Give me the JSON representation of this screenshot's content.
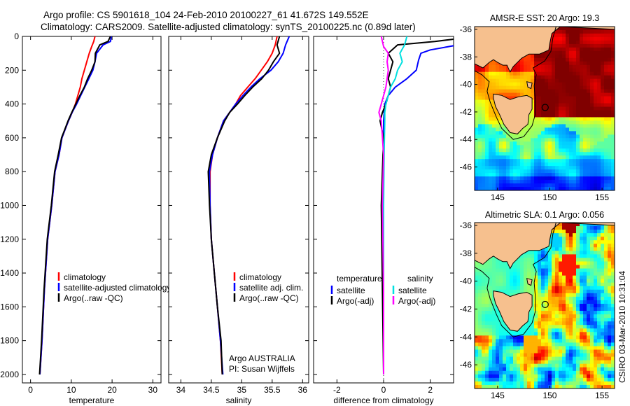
{
  "header": {
    "line1": "Argo profile: CS 5901618_104 24-Feb-2010 20100227_61 41.672S 149.552E",
    "line2": "Climatology: CARS2009. Satellite-adjusted climatology: synTS_20100225.nc (0.89d later)"
  },
  "side_label": "CSIRO 03-Mar-2010 10:31:04",
  "colors": {
    "climatology": "#ff0000",
    "satellite": "#0000ff",
    "argo": "#000000",
    "salinity_satellite": "#00e0e0",
    "salinity_argo": "#ff00ff",
    "land": "#f6c08e",
    "coast": "#000000"
  },
  "chart_data": [
    {
      "id": "temperature",
      "type": "line",
      "xlabel": "temperature",
      "ylabel": "",
      "xlim": [
        -2,
        32
      ],
      "ylim": [
        2050,
        0
      ],
      "xticks": [
        0,
        10,
        20,
        30
      ],
      "yticks": [
        0,
        200,
        400,
        600,
        800,
        1000,
        1200,
        1400,
        1600,
        1800,
        2000
      ],
      "legend": [
        "climatology",
        "satellite-adjusted climatology",
        "Argo(..raw -QC)"
      ],
      "series": [
        {
          "name": "climatology",
          "color": "#ff0000",
          "x": [
            15.8,
            15.5,
            15.0,
            14.4,
            13.8,
            13.2,
            12.6,
            12.2,
            11.6,
            11.0,
            10.2,
            9.3,
            8.5,
            7.7,
            7.0,
            6.0,
            5.2,
            4.2,
            3.4,
            2.8,
            2.3
          ],
          "y": [
            0,
            30,
            60,
            100,
            150,
            200,
            250,
            300,
            350,
            400,
            450,
            500,
            550,
            600,
            700,
            800,
            1000,
            1200,
            1500,
            1800,
            2000
          ]
        },
        {
          "name": "satellite-adjusted climatology",
          "color": "#0000ff",
          "x": [
            19.8,
            19.6,
            17.8,
            16.2,
            15.8,
            15.3,
            14.3,
            13.3,
            12.3,
            11.3,
            10.2,
            9.3,
            8.5,
            7.7,
            7.0,
            6.0,
            5.2,
            4.2,
            3.4,
            2.8,
            2.3
          ],
          "y": [
            0,
            30,
            50,
            100,
            150,
            200,
            250,
            300,
            350,
            400,
            450,
            500,
            550,
            600,
            700,
            800,
            1000,
            1200,
            1500,
            1800,
            2000
          ]
        },
        {
          "name": "Argo(..raw -QC)",
          "color": "#000000",
          "x": [
            19.6,
            19.0,
            17.0,
            15.9,
            15.8,
            15.0,
            14.0,
            13.2,
            12.1,
            11.1,
            10.1,
            9.2,
            8.4,
            7.6,
            6.8,
            5.9,
            5.1,
            4.1,
            3.3,
            2.7,
            2.2
          ],
          "y": [
            0,
            30,
            50,
            100,
            150,
            200,
            250,
            300,
            350,
            400,
            450,
            500,
            550,
            600,
            700,
            800,
            1000,
            1200,
            1500,
            1800,
            2000
          ]
        }
      ],
      "annotations": []
    },
    {
      "id": "salinity",
      "type": "line",
      "xlabel": "salinity",
      "ylabel": "",
      "xlim": [
        33.8,
        36.1
      ],
      "ylim": [
        2050,
        0
      ],
      "xticks": [
        34,
        34.5,
        35,
        35.5,
        36
      ],
      "xticklabels": [
        "34",
        "34.5",
        "35",
        "35.5",
        "36"
      ],
      "legend": [
        "climatology",
        "satellite adj. clim.",
        "Argo(..raw -QC)"
      ],
      "series": [
        {
          "name": "climatology",
          "color": "#ff0000",
          "x": [
            35.58,
            35.55,
            35.5,
            35.42,
            35.32,
            35.22,
            35.1,
            34.98,
            34.9,
            34.8,
            34.7,
            34.6,
            34.52,
            34.48,
            34.48,
            34.5,
            34.55,
            34.6,
            34.65,
            34.68
          ],
          "y": [
            0,
            50,
            100,
            150,
            200,
            250,
            300,
            350,
            400,
            450,
            500,
            600,
            700,
            800,
            1000,
            1200,
            1400,
            1600,
            1800,
            2000
          ]
        },
        {
          "name": "satellite adj. clim.",
          "color": "#0000ff",
          "x": [
            35.78,
            35.72,
            35.68,
            35.6,
            35.48,
            35.3,
            35.15,
            35.02,
            34.9,
            34.8,
            34.7,
            34.6,
            34.52,
            34.47,
            34.48,
            34.5,
            34.55,
            34.6,
            34.65,
            34.69
          ],
          "y": [
            0,
            50,
            100,
            150,
            200,
            250,
            300,
            350,
            400,
            450,
            500,
            600,
            700,
            800,
            1000,
            1200,
            1400,
            1600,
            1800,
            2000
          ]
        },
        {
          "name": "Argo(..raw -QC)",
          "color": "#000000",
          "x": [
            35.62,
            35.58,
            35.62,
            35.52,
            35.44,
            35.33,
            35.18,
            35.05,
            34.93,
            34.8,
            34.72,
            34.6,
            34.5,
            34.45,
            34.47,
            34.5,
            34.55,
            34.6,
            34.66,
            34.68
          ],
          "y": [
            0,
            50,
            100,
            150,
            200,
            250,
            300,
            350,
            400,
            450,
            500,
            600,
            700,
            800,
            1000,
            1200,
            1400,
            1600,
            1800,
            2000
          ]
        }
      ],
      "annotations": [
        "Argo AUSTRALIA",
        "PI: Susan Wijffels"
      ]
    },
    {
      "id": "difference",
      "type": "line",
      "xlabel": "difference from climatology",
      "ylabel": "",
      "xlim": [
        -3,
        3
      ],
      "ylim": [
        2050,
        0
      ],
      "xticks": [
        -2,
        0,
        2
      ],
      "legend_groups": [
        {
          "title": "temperature",
          "items": [
            "satellite",
            "Argo(-adj)"
          ]
        },
        {
          "title": "salinity",
          "items": [
            "satellite",
            "Argo(-adj)"
          ]
        }
      ],
      "series": [
        {
          "name": "temperature satellite",
          "color": "#0000ff",
          "x": [
            4.0,
            3.2,
            2.0,
            1.6,
            1.5,
            1.4,
            1.0,
            0.5,
            0.2,
            0.05,
            0.0,
            0.0,
            0.0,
            0.0,
            0.0
          ],
          "y": [
            0,
            50,
            80,
            100,
            140,
            200,
            250,
            300,
            350,
            400,
            500,
            700,
            1000,
            1500,
            2000
          ]
        },
        {
          "name": "temperature Argo(-adj)",
          "color": "#000000",
          "x": [
            4.0,
            2.2,
            0.6,
            0.2,
            0.4,
            0.2,
            0.3,
            0.1,
            -0.05,
            -0.15,
            0.0,
            -0.05,
            -0.1,
            -0.05,
            0.0
          ],
          "y": [
            0,
            30,
            50,
            100,
            150,
            250,
            300,
            400,
            450,
            500,
            600,
            800,
            1000,
            1500,
            2000
          ]
        },
        {
          "name": "salinity satellite",
          "color": "#00e0e0",
          "x": [
            1.0,
            0.9,
            0.7,
            0.8,
            0.6,
            0.5,
            0.3,
            0.1,
            0.05,
            0.05,
            0.02,
            0.0,
            0.0
          ],
          "y": [
            0,
            50,
            100,
            150,
            200,
            250,
            300,
            400,
            450,
            500,
            700,
            1000,
            2000
          ]
        },
        {
          "name": "salinity Argo(-adj)",
          "color": "#ff00ff",
          "x": [
            -0.1,
            0.0,
            0.2,
            0.15,
            0.2,
            0.1,
            0.0,
            -0.2,
            -0.1,
            0.0,
            -0.05,
            0.0,
            0.0
          ],
          "y": [
            0,
            60,
            100,
            150,
            200,
            300,
            350,
            450,
            500,
            700,
            1000,
            1500,
            2000
          ]
        }
      ],
      "annotations": []
    },
    {
      "id": "sst_map",
      "type": "heatmap",
      "title": "AMSR-E SST: 20 Argo: 19.3",
      "xlim": [
        142.8,
        156.2
      ],
      "ylim": [
        -47.7,
        -35.8
      ],
      "xticks": [
        145,
        150,
        155
      ],
      "yticks": [
        -36,
        -38,
        -40,
        -42,
        -44,
        -46
      ],
      "marker": {
        "lon": 149.552,
        "lat": -41.672
      }
    },
    {
      "id": "sla_map",
      "type": "heatmap",
      "title": "Altimetric SLA: 0.1 Argo: 0.056",
      "xlim": [
        142.8,
        156.2
      ],
      "ylim": [
        -47.7,
        -35.8
      ],
      "xticks": [
        145,
        150,
        155
      ],
      "yticks": [
        -36,
        -38,
        -40,
        -42,
        -44,
        -46
      ],
      "marker": {
        "lon": 149.552,
        "lat": -41.672
      }
    }
  ]
}
